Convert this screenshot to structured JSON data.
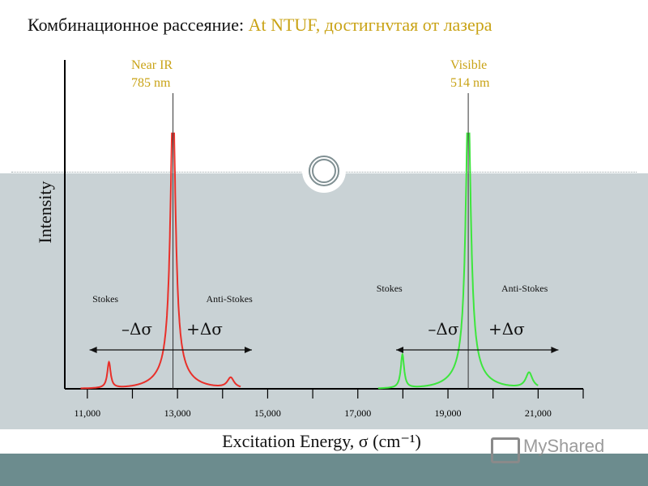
{
  "title": {
    "part1": "Комбинационное рассеяние:",
    "part2": "At NTUF, достигнvтая от лазера"
  },
  "watermark": "MyShared",
  "colors": {
    "near_ir": "#e8302a",
    "visible": "#3de63d",
    "title_accent": "#c9a316",
    "axis": "#000000"
  },
  "chart_data": {
    "type": "line",
    "title": "",
    "xlabel": "Excitation Energy, σ (cm⁻¹)",
    "ylabel": "Intensity",
    "xlim": [
      10500,
      22000
    ],
    "ylim": [
      0,
      1
    ],
    "x_ticks": [
      11000,
      12000,
      13000,
      14000,
      15000,
      16000,
      17000,
      18000,
      19000,
      20000,
      21000,
      22000
    ],
    "x_tick_labels": [
      {
        "value": 11000,
        "label": "11,000"
      },
      {
        "value": 13000,
        "label": "13,000"
      },
      {
        "value": 15000,
        "label": "15,000"
      },
      {
        "value": 17000,
        "label": "17,000"
      },
      {
        "value": 19000,
        "label": "19,000"
      },
      {
        "value": 21000,
        "label": "21,000"
      }
    ],
    "lasers": [
      {
        "line1": "Near IR",
        "line2": "785 nm",
        "position": 12900
      },
      {
        "line1": "Visible",
        "line2": "514 nm",
        "position": 19450
      }
    ],
    "series": [
      {
        "color_key": "near_ir",
        "laser_center": 12900,
        "peaks": [
          {
            "x": 11480,
            "height": 0.1,
            "width": 45
          },
          {
            "x": 12900,
            "height": 1.0,
            "width": 70
          },
          {
            "x": 14180,
            "height": 0.04,
            "width": 90
          }
        ],
        "background": {
          "amp": 0.11,
          "decay": 300
        }
      },
      {
        "color_key": "visible",
        "laser_center": 19450,
        "peaks": [
          {
            "x": 17990,
            "height": 0.13,
            "width": 45
          },
          {
            "x": 19450,
            "height": 1.0,
            "width": 70
          },
          {
            "x": 20800,
            "height": 0.06,
            "width": 90
          }
        ],
        "background": {
          "amp": 0.11,
          "decay": 300
        }
      }
    ],
    "annotations": [
      {
        "text": "Stokes",
        "x": 11400,
        "y": 0.335
      },
      {
        "text": "Anti-Stokes",
        "x": 14150,
        "y": 0.335
      },
      {
        "text": "Stokes",
        "x": 17700,
        "y": 0.375
      },
      {
        "text": "Anti-Stokes",
        "x": 20700,
        "y": 0.375
      }
    ],
    "shift_arrows": [
      {
        "from": 11050,
        "to": 14650,
        "y": 0.15,
        "minus": "–Δσ",
        "plus": "+Δσ",
        "minus_x": 12100,
        "plus_x": 13600,
        "label_y": 0.21
      },
      {
        "from": 17850,
        "to": 21450,
        "y": 0.15,
        "minus": "–Δσ",
        "plus": "+Δσ",
        "minus_x": 18900,
        "plus_x": 20300,
        "label_y": 0.21
      }
    ]
  }
}
